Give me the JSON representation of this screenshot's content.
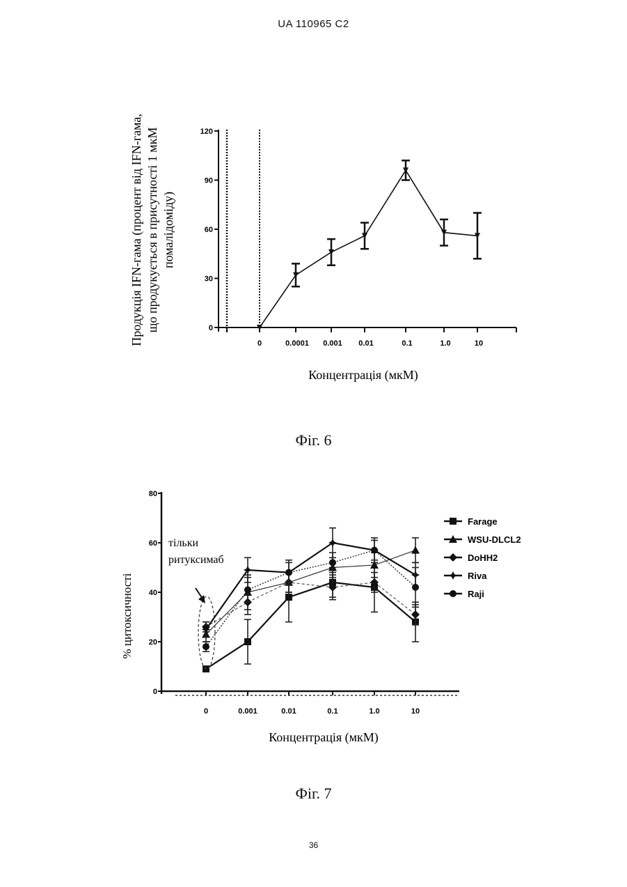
{
  "page": {
    "header": "UA   110965   C2",
    "page_number": "36"
  },
  "figures": [
    {
      "caption": "Фіг. 6",
      "chart_data": {
        "type": "line",
        "xlabel": "Концентрація (мкМ)",
        "ylabel_lines": [
          "Продукція IFN-гама (процент від IFN-гама,",
          "що продукується в присутності 1 мкМ",
          "помалідоміду)"
        ],
        "categories": [
          "0",
          "0.0001",
          "0.001",
          "0.01",
          "0.1",
          "1.0",
          "10"
        ],
        "y_ticks": [
          "0",
          "30",
          "60",
          "90",
          "120"
        ],
        "ylim": [
          0,
          120
        ],
        "series": [
          {
            "values": [
              0,
              32,
              46,
              56,
              96,
              58,
              56
            ],
            "errors": [
              0,
              7,
              8,
              8,
              6,
              8,
              14
            ]
          }
        ]
      }
    },
    {
      "caption": "Фіг. 7",
      "chart_data": {
        "type": "line",
        "xlabel": "Концентрація (мкМ)",
        "ylabel": "% цитоксичності",
        "categories": [
          "0",
          "0.001",
          "0.01",
          "0.1",
          "1.0",
          "10"
        ],
        "y_ticks": [
          "0",
          "20",
          "40",
          "60",
          "80"
        ],
        "ylim": [
          0,
          80
        ],
        "annotation_lines": [
          "тільки",
          "ритуксимаб"
        ],
        "series": [
          {
            "name": "Farage",
            "marker": "square",
            "values": [
              9,
              20,
              38,
              44,
              42,
              28
            ],
            "errors": [
              1,
              9,
              10,
              6,
              10,
              8
            ]
          },
          {
            "name": "WSU-DLCL2",
            "marker": "triangle",
            "values": [
              23,
              40,
              44,
              50,
              51,
              57
            ],
            "errors": [
              3,
              7,
              4,
              4,
              5,
              5
            ]
          },
          {
            "name": "DoHH2",
            "marker": "diamond",
            "values": [
              26,
              36,
              44,
              42,
              44,
              31
            ],
            "errors": [
              2,
              5,
              4,
              5,
              4,
              4
            ]
          },
          {
            "name": "Riva",
            "marker": "star",
            "values": [
              25,
              49,
              48,
              60,
              57,
              47
            ],
            "errors": [
              3,
              5,
              4,
              6,
              4,
              5
            ]
          },
          {
            "name": "Raji",
            "marker": "circle",
            "values": [
              18,
              41,
              48,
              52,
              57,
              42
            ],
            "errors": [
              2,
              5,
              5,
              4,
              5,
              8
            ]
          }
        ]
      }
    }
  ]
}
